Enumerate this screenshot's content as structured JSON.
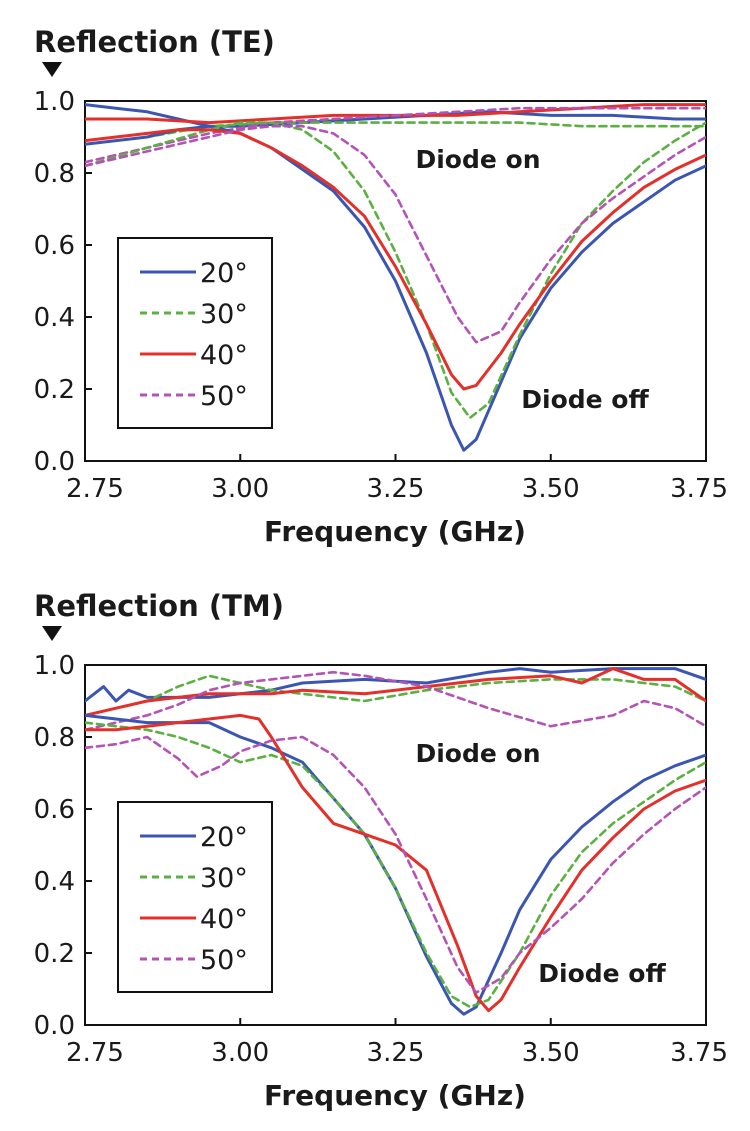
{
  "chart_data": [
    {
      "type": "line",
      "title": "Reflection (TE)",
      "xlabel": "Frequency (GHz)",
      "ylabel": "Reflection (TE)",
      "xlim": [
        2.75,
        3.75
      ],
      "ylim": [
        0.0,
        1.0
      ],
      "xticks": [
        "2.75",
        "3.00",
        "3.25",
        "3.50",
        "3.75"
      ],
      "yticks": [
        "0.0",
        "0.2",
        "0.4",
        "0.6",
        "0.8",
        "1.0"
      ],
      "grid": false,
      "legend_position": "lower-left",
      "annotations": [
        "Diode on",
        "Diode off"
      ],
      "series": [
        {
          "name": "20°",
          "state": "on",
          "style": "solid",
          "color": "#3b56b2",
          "x": [
            2.75,
            2.8,
            2.85,
            2.9,
            2.95,
            3.0,
            3.1,
            3.2,
            3.3,
            3.4,
            3.5,
            3.6,
            3.7,
            3.75
          ],
          "y": [
            0.99,
            0.98,
            0.97,
            0.95,
            0.93,
            0.93,
            0.94,
            0.95,
            0.96,
            0.97,
            0.96,
            0.96,
            0.95,
            0.95
          ]
        },
        {
          "name": "30°",
          "state": "on",
          "style": "dashed",
          "color": "#5ab040",
          "x": [
            2.75,
            2.85,
            2.95,
            3.05,
            3.15,
            3.25,
            3.35,
            3.45,
            3.55,
            3.65,
            3.75
          ],
          "y": [
            0.88,
            0.9,
            0.93,
            0.94,
            0.94,
            0.94,
            0.94,
            0.94,
            0.93,
            0.93,
            0.93
          ]
        },
        {
          "name": "40°",
          "state": "on",
          "style": "solid",
          "color": "#e3302a",
          "x": [
            2.75,
            2.85,
            2.95,
            3.05,
            3.15,
            3.25,
            3.35,
            3.45,
            3.55,
            3.65,
            3.75
          ],
          "y": [
            0.95,
            0.95,
            0.94,
            0.95,
            0.96,
            0.96,
            0.96,
            0.97,
            0.98,
            0.99,
            0.99
          ]
        },
        {
          "name": "50°",
          "state": "on",
          "style": "dashed",
          "color": "#b552b5",
          "x": [
            2.75,
            2.85,
            2.95,
            3.05,
            3.15,
            3.25,
            3.35,
            3.45,
            3.55,
            3.65,
            3.75
          ],
          "y": [
            0.83,
            0.87,
            0.91,
            0.94,
            0.95,
            0.96,
            0.97,
            0.98,
            0.98,
            0.98,
            0.98
          ]
        },
        {
          "name": "20°",
          "state": "off",
          "style": "solid",
          "color": "#3b56b2",
          "x": [
            2.75,
            2.8,
            2.85,
            2.9,
            2.95,
            3.0,
            3.05,
            3.1,
            3.15,
            3.2,
            3.25,
            3.3,
            3.34,
            3.36,
            3.38,
            3.42,
            3.45,
            3.5,
            3.55,
            3.6,
            3.65,
            3.7,
            3.75
          ],
          "y": [
            0.88,
            0.89,
            0.9,
            0.92,
            0.93,
            0.91,
            0.87,
            0.81,
            0.75,
            0.65,
            0.5,
            0.3,
            0.1,
            0.03,
            0.06,
            0.22,
            0.34,
            0.48,
            0.58,
            0.66,
            0.72,
            0.78,
            0.82
          ]
        },
        {
          "name": "30°",
          "state": "off",
          "style": "dashed",
          "color": "#5ab040",
          "x": [
            2.75,
            2.85,
            2.95,
            3.0,
            3.05,
            3.1,
            3.15,
            3.2,
            3.25,
            3.3,
            3.34,
            3.37,
            3.4,
            3.45,
            3.5,
            3.55,
            3.6,
            3.65,
            3.7,
            3.75
          ],
          "y": [
            0.82,
            0.87,
            0.92,
            0.94,
            0.94,
            0.92,
            0.86,
            0.75,
            0.58,
            0.38,
            0.19,
            0.12,
            0.16,
            0.35,
            0.52,
            0.66,
            0.75,
            0.83,
            0.89,
            0.94
          ]
        },
        {
          "name": "40°",
          "state": "off",
          "style": "solid",
          "color": "#e3302a",
          "x": [
            2.75,
            2.8,
            2.85,
            2.9,
            2.95,
            3.0,
            3.05,
            3.1,
            3.15,
            3.2,
            3.25,
            3.3,
            3.34,
            3.36,
            3.38,
            3.42,
            3.45,
            3.5,
            3.55,
            3.6,
            3.65,
            3.7,
            3.75
          ],
          "y": [
            0.89,
            0.9,
            0.91,
            0.92,
            0.92,
            0.91,
            0.87,
            0.82,
            0.76,
            0.68,
            0.54,
            0.38,
            0.24,
            0.2,
            0.21,
            0.3,
            0.38,
            0.5,
            0.61,
            0.69,
            0.76,
            0.81,
            0.85
          ]
        },
        {
          "name": "50°",
          "state": "off",
          "style": "dashed",
          "color": "#b552b5",
          "x": [
            2.75,
            2.85,
            2.95,
            3.0,
            3.05,
            3.1,
            3.15,
            3.2,
            3.25,
            3.3,
            3.35,
            3.38,
            3.42,
            3.45,
            3.5,
            3.55,
            3.6,
            3.65,
            3.7,
            3.75
          ],
          "y": [
            0.82,
            0.86,
            0.9,
            0.92,
            0.93,
            0.93,
            0.91,
            0.85,
            0.74,
            0.57,
            0.4,
            0.33,
            0.36,
            0.44,
            0.56,
            0.66,
            0.73,
            0.79,
            0.85,
            0.9
          ]
        }
      ]
    },
    {
      "type": "line",
      "title": "Reflection (TM)",
      "xlabel": "Frequency (GHz)",
      "ylabel": "Reflection (TM)",
      "xlim": [
        2.75,
        3.75
      ],
      "ylim": [
        0.0,
        1.0
      ],
      "xticks": [
        "2.75",
        "3.00",
        "3.25",
        "3.50",
        "3.75"
      ],
      "yticks": [
        "0.0",
        "0.2",
        "0.4",
        "0.6",
        "0.8",
        "1.0"
      ],
      "grid": false,
      "legend_position": "lower-left",
      "annotations": [
        "Diode on",
        "Diode off"
      ],
      "series": [
        {
          "name": "20°",
          "state": "on",
          "style": "solid",
          "color": "#3b56b2",
          "x": [
            2.75,
            2.78,
            2.8,
            2.82,
            2.85,
            2.9,
            2.95,
            3.0,
            3.05,
            3.1,
            3.2,
            3.3,
            3.4,
            3.45,
            3.5,
            3.6,
            3.7,
            3.75
          ],
          "y": [
            0.9,
            0.94,
            0.9,
            0.93,
            0.91,
            0.91,
            0.91,
            0.92,
            0.93,
            0.95,
            0.96,
            0.95,
            0.98,
            0.99,
            0.98,
            0.99,
            0.99,
            0.96
          ]
        },
        {
          "name": "30°",
          "state": "on",
          "style": "dashed",
          "color": "#5ab040",
          "x": [
            2.75,
            2.8,
            2.85,
            2.9,
            2.95,
            3.0,
            3.05,
            3.1,
            3.2,
            3.3,
            3.4,
            3.5,
            3.6,
            3.7,
            3.75
          ],
          "y": [
            0.86,
            0.88,
            0.9,
            0.94,
            0.97,
            0.95,
            0.93,
            0.92,
            0.9,
            0.93,
            0.95,
            0.96,
            0.96,
            0.94,
            0.9
          ]
        },
        {
          "name": "40°",
          "state": "on",
          "style": "solid",
          "color": "#e3302a",
          "x": [
            2.75,
            2.8,
            2.85,
            2.9,
            2.95,
            3.0,
            3.05,
            3.1,
            3.2,
            3.3,
            3.4,
            3.5,
            3.55,
            3.6,
            3.65,
            3.7,
            3.75
          ],
          "y": [
            0.86,
            0.88,
            0.9,
            0.91,
            0.92,
            0.92,
            0.92,
            0.93,
            0.92,
            0.94,
            0.96,
            0.97,
            0.95,
            0.99,
            0.96,
            0.96,
            0.9
          ]
        },
        {
          "name": "50°",
          "state": "on",
          "style": "dashed",
          "color": "#b552b5",
          "x": [
            2.75,
            2.8,
            2.85,
            2.9,
            2.95,
            3.0,
            3.05,
            3.1,
            3.15,
            3.2,
            3.3,
            3.4,
            3.5,
            3.6,
            3.65,
            3.7,
            3.75
          ],
          "y": [
            0.82,
            0.84,
            0.86,
            0.89,
            0.93,
            0.95,
            0.96,
            0.97,
            0.98,
            0.97,
            0.94,
            0.88,
            0.83,
            0.86,
            0.9,
            0.88,
            0.83
          ]
        },
        {
          "name": "20°",
          "state": "off",
          "style": "solid",
          "color": "#3b56b2",
          "x": [
            2.75,
            2.8,
            2.85,
            2.9,
            2.95,
            3.0,
            3.05,
            3.1,
            3.15,
            3.2,
            3.25,
            3.3,
            3.34,
            3.36,
            3.38,
            3.42,
            3.45,
            3.5,
            3.55,
            3.6,
            3.65,
            3.7,
            3.75
          ],
          "y": [
            0.86,
            0.85,
            0.84,
            0.84,
            0.84,
            0.8,
            0.77,
            0.73,
            0.63,
            0.53,
            0.38,
            0.19,
            0.06,
            0.03,
            0.05,
            0.2,
            0.32,
            0.46,
            0.55,
            0.62,
            0.68,
            0.72,
            0.75
          ]
        },
        {
          "name": "30°",
          "state": "off",
          "style": "dashed",
          "color": "#5ab040",
          "x": [
            2.75,
            2.8,
            2.85,
            2.9,
            2.95,
            3.0,
            3.05,
            3.1,
            3.15,
            3.2,
            3.25,
            3.3,
            3.34,
            3.37,
            3.4,
            3.45,
            3.5,
            3.55,
            3.6,
            3.65,
            3.7,
            3.75
          ],
          "y": [
            0.84,
            0.83,
            0.82,
            0.8,
            0.77,
            0.73,
            0.75,
            0.72,
            0.63,
            0.53,
            0.38,
            0.2,
            0.08,
            0.05,
            0.07,
            0.2,
            0.36,
            0.48,
            0.56,
            0.62,
            0.68,
            0.73
          ]
        },
        {
          "name": "40°",
          "state": "off",
          "style": "solid",
          "color": "#e3302a",
          "x": [
            2.75,
            2.8,
            2.85,
            2.9,
            2.95,
            3.0,
            3.03,
            3.05,
            3.1,
            3.15,
            3.2,
            3.25,
            3.3,
            3.35,
            3.38,
            3.4,
            3.42,
            3.45,
            3.5,
            3.55,
            3.6,
            3.65,
            3.7,
            3.75
          ],
          "y": [
            0.82,
            0.82,
            0.83,
            0.84,
            0.85,
            0.86,
            0.85,
            0.8,
            0.66,
            0.56,
            0.53,
            0.5,
            0.43,
            0.22,
            0.08,
            0.04,
            0.07,
            0.16,
            0.3,
            0.43,
            0.52,
            0.6,
            0.65,
            0.68
          ]
        },
        {
          "name": "50°",
          "state": "off",
          "style": "dashed",
          "color": "#b552b5",
          "x": [
            2.75,
            2.8,
            2.85,
            2.9,
            2.93,
            2.97,
            3.0,
            3.05,
            3.1,
            3.15,
            3.2,
            3.25,
            3.3,
            3.35,
            3.38,
            3.42,
            3.45,
            3.5,
            3.55,
            3.6,
            3.65,
            3.7,
            3.75
          ],
          "y": [
            0.77,
            0.78,
            0.8,
            0.74,
            0.69,
            0.72,
            0.76,
            0.79,
            0.8,
            0.75,
            0.66,
            0.53,
            0.35,
            0.16,
            0.09,
            0.13,
            0.2,
            0.27,
            0.35,
            0.45,
            0.53,
            0.6,
            0.66
          ]
        }
      ]
    }
  ]
}
